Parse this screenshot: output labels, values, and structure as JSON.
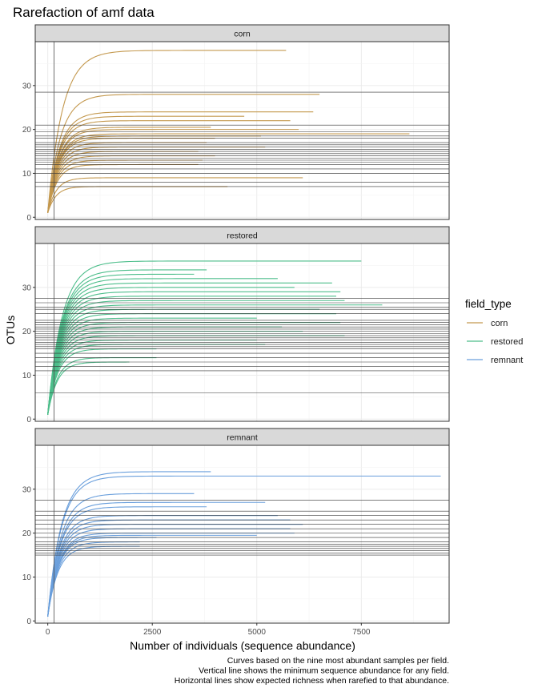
{
  "chart_data": {
    "type": "line",
    "title": "Rarefaction of amf data",
    "xlabel": "Number of individuals (sequence abundance)",
    "ylabel": "OTUs",
    "xlim": [
      -300,
      9600
    ],
    "x_ticks": [
      0,
      2500,
      5000,
      7500
    ],
    "x_tick_labels": [
      "0",
      "2500",
      "5000",
      "7500"
    ],
    "y_ticks": [
      0,
      10,
      20,
      30
    ],
    "y_tick_labels": [
      "0",
      "10",
      "20",
      "30"
    ],
    "vline_x": 150,
    "legend": {
      "title": "field_type",
      "position": "right",
      "items": [
        {
          "label": "corn",
          "color": "#C4994F"
        },
        {
          "label": "restored",
          "color": "#4DBE8B"
        },
        {
          "label": "remnant",
          "color": "#6A9FDC"
        }
      ]
    },
    "caption": [
      "Curves based on the nine most abundant samples per field.",
      "Vertical line shows the minimum sequence abundance for any field.",
      "Horizontal lines show expected richness when rarefied to that abundance."
    ],
    "panels": [
      {
        "strip": "corn",
        "color": "#C4994F",
        "ylim": [
          -0.5,
          40
        ],
        "hlines": [
          7,
          8,
          10,
          11,
          12,
          12.5,
          13,
          13.5,
          14,
          14.5,
          15,
          15.5,
          16,
          16.5,
          17,
          18,
          18.5,
          19.5,
          21,
          28.5,
          40
        ],
        "curves": [
          {
            "end": 5700,
            "asym": 38
          },
          {
            "end": 6500,
            "asym": 28
          },
          {
            "end": 6350,
            "asym": 24
          },
          {
            "end": 4700,
            "asym": 23
          },
          {
            "end": 5800,
            "asym": 22
          },
          {
            "end": 3900,
            "asym": 20.5
          },
          {
            "end": 6000,
            "asym": 20
          },
          {
            "end": 8650,
            "asym": 19
          },
          {
            "end": 5100,
            "asym": 18.5
          },
          {
            "end": 4000,
            "asym": 18
          },
          {
            "end": 3800,
            "asym": 17
          },
          {
            "end": 5200,
            "asym": 16
          },
          {
            "end": 3600,
            "asym": 15
          },
          {
            "end": 4000,
            "asym": 14
          },
          {
            "end": 3700,
            "asym": 13
          },
          {
            "end": 3600,
            "asym": 12
          },
          {
            "end": 6100,
            "asym": 9
          },
          {
            "end": 4300,
            "asym": 7
          }
        ]
      },
      {
        "strip": "restored",
        "color": "#4DBE8B",
        "ylim": [
          -0.5,
          40
        ],
        "hlines": [
          6,
          11,
          12,
          13,
          14,
          15,
          16,
          16.5,
          17,
          17.5,
          18,
          18.5,
          19,
          19.5,
          20,
          20.5,
          21,
          21.5,
          22,
          22.5,
          24,
          25,
          25.5,
          26.5,
          27.5
        ],
        "curves": [
          {
            "end": 7500,
            "asym": 36
          },
          {
            "end": 3800,
            "asym": 34
          },
          {
            "end": 3500,
            "asym": 33
          },
          {
            "end": 5500,
            "asym": 32
          },
          {
            "end": 6800,
            "asym": 31
          },
          {
            "end": 5900,
            "asym": 30
          },
          {
            "end": 7000,
            "asym": 29
          },
          {
            "end": 6900,
            "asym": 28
          },
          {
            "end": 7100,
            "asym": 27
          },
          {
            "end": 8000,
            "asym": 26
          },
          {
            "end": 6500,
            "asym": 25
          },
          {
            "end": 6900,
            "asym": 24
          },
          {
            "end": 5000,
            "asym": 23
          },
          {
            "end": 7000,
            "asym": 22
          },
          {
            "end": 5600,
            "asym": 21
          },
          {
            "end": 6100,
            "asym": 20
          },
          {
            "end": 7100,
            "asym": 19
          },
          {
            "end": 5000,
            "asym": 18
          },
          {
            "end": 5200,
            "asym": 17
          },
          {
            "end": 2600,
            "asym": 16
          },
          {
            "end": 2600,
            "asym": 14
          },
          {
            "end": 1950,
            "asym": 13
          }
        ]
      },
      {
        "strip": "remnant",
        "color": "#6A9FDC",
        "ylim": [
          -0.5,
          40
        ],
        "hlines": [
          15,
          15.5,
          16,
          16.5,
          17,
          17.5,
          18,
          19,
          20,
          21,
          22,
          23,
          24,
          25,
          27.5
        ],
        "curves": [
          {
            "end": 3900,
            "asym": 34
          },
          {
            "end": 9400,
            "asym": 33
          },
          {
            "end": 3500,
            "asym": 29
          },
          {
            "end": 5200,
            "asym": 27
          },
          {
            "end": 3800,
            "asym": 26
          },
          {
            "end": 5500,
            "asym": 24
          },
          {
            "end": 5800,
            "asym": 23
          },
          {
            "end": 6100,
            "asym": 22
          },
          {
            "end": 5800,
            "asym": 21
          },
          {
            "end": 5900,
            "asym": 20
          },
          {
            "end": 5000,
            "asym": 19.5
          },
          {
            "end": 2600,
            "asym": 19
          },
          {
            "end": 2200,
            "asym": 18
          },
          {
            "end": 2200,
            "asym": 17
          }
        ]
      }
    ]
  }
}
